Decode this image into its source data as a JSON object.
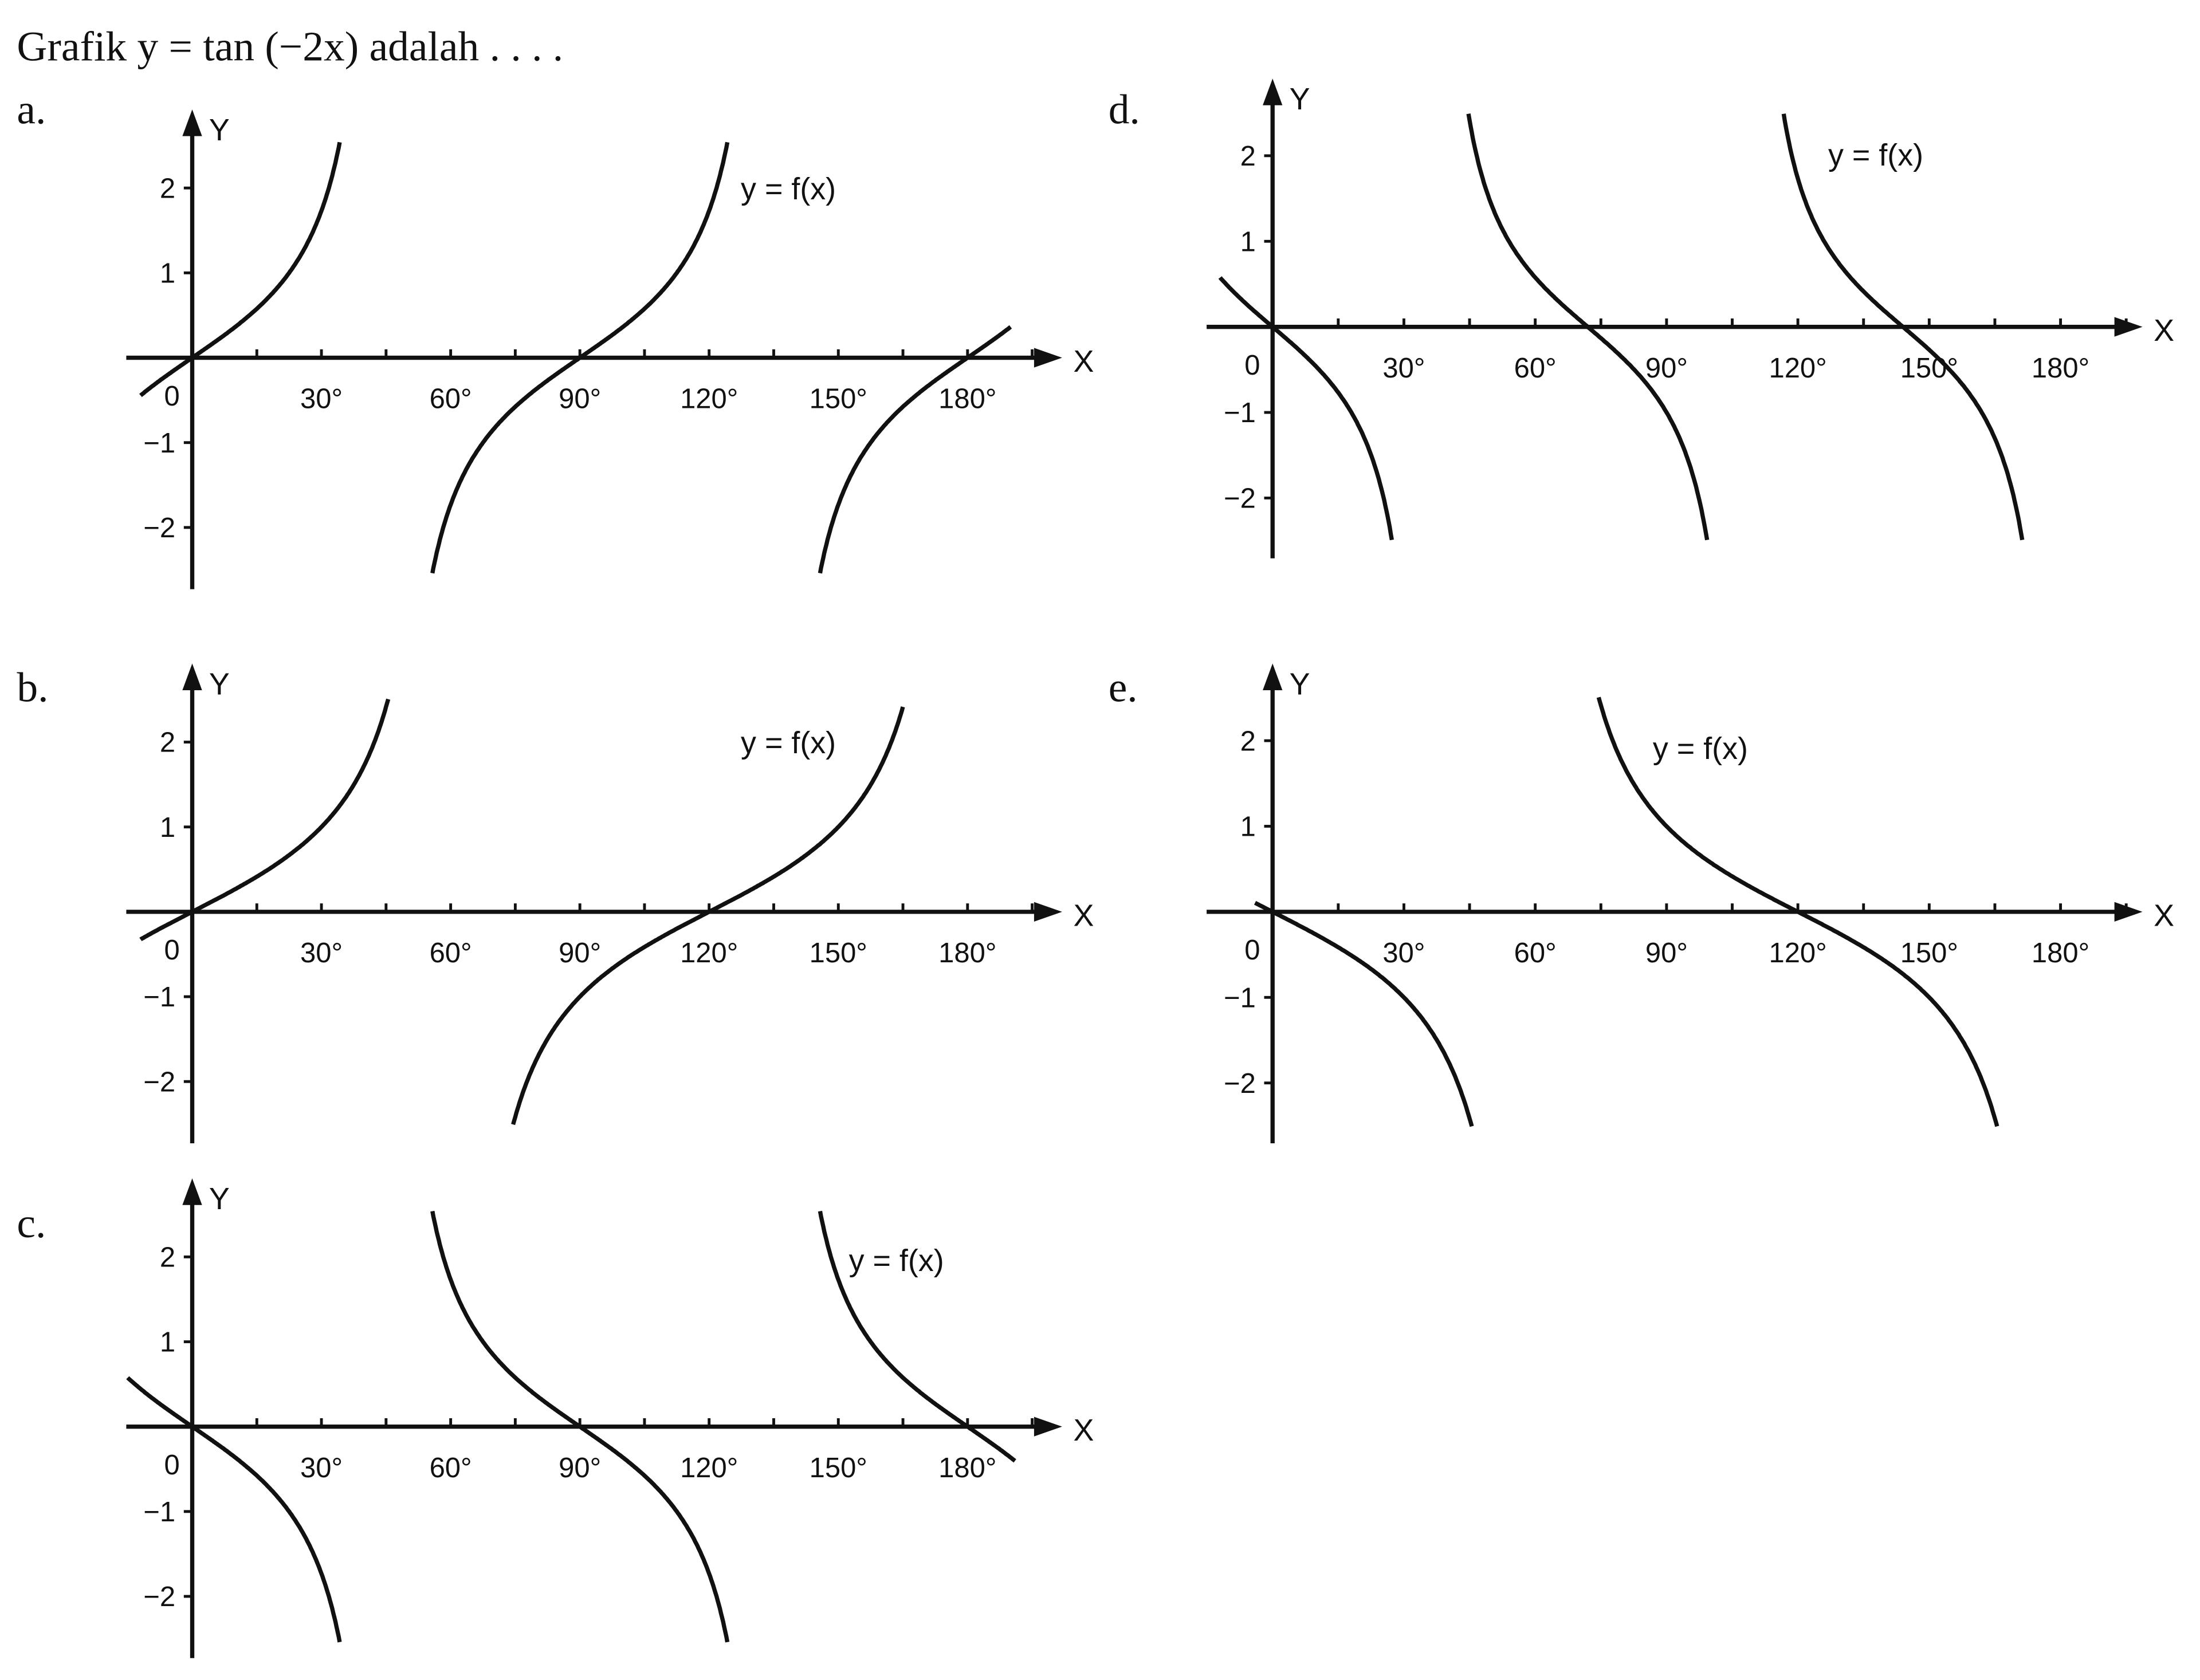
{
  "question": "Grafik y = tan (−2x) adalah . . . .",
  "options": [
    {
      "label": "a.",
      "y_axis": "Y",
      "x_axis": "X",
      "origin": "0",
      "y_ticks": [
        "2",
        "1",
        "−1",
        "−2"
      ],
      "x_ticks": [
        "30°",
        "60°",
        "90°",
        "120°",
        "150°",
        "180°"
      ],
      "curve_label": "y = f(x)"
    },
    {
      "label": "b.",
      "y_axis": "Y",
      "x_axis": "X",
      "origin": "0",
      "y_ticks": [
        "2",
        "1",
        "−1",
        "−2"
      ],
      "x_ticks": [
        "30°",
        "60°",
        "90°",
        "120°",
        "150°",
        "180°"
      ],
      "curve_label": "y = f(x)"
    },
    {
      "label": "c.",
      "y_axis": "Y",
      "x_axis": "X",
      "origin": "0",
      "y_ticks": [
        "2",
        "1",
        "−1",
        "−2"
      ],
      "x_ticks": [
        "30°",
        "60°",
        "90°",
        "120°",
        "150°",
        "180°"
      ],
      "curve_label": "y = f(x)"
    },
    {
      "label": "d.",
      "y_axis": "Y",
      "x_axis": "X",
      "origin": "0",
      "y_ticks": [
        "2",
        "1",
        "−1",
        "−2"
      ],
      "x_ticks": [
        "30°",
        "60°",
        "90°",
        "120°",
        "150°",
        "180°"
      ],
      "curve_label": "y = f(x)"
    },
    {
      "label": "e.",
      "y_axis": "Y",
      "x_axis": "X",
      "origin": "0",
      "y_ticks": [
        "2",
        "1",
        "−1",
        "−2"
      ],
      "x_ticks": [
        "30°",
        "60°",
        "90°",
        "120°",
        "150°",
        "180°"
      ],
      "curve_label": "y = f(x)"
    }
  ]
}
